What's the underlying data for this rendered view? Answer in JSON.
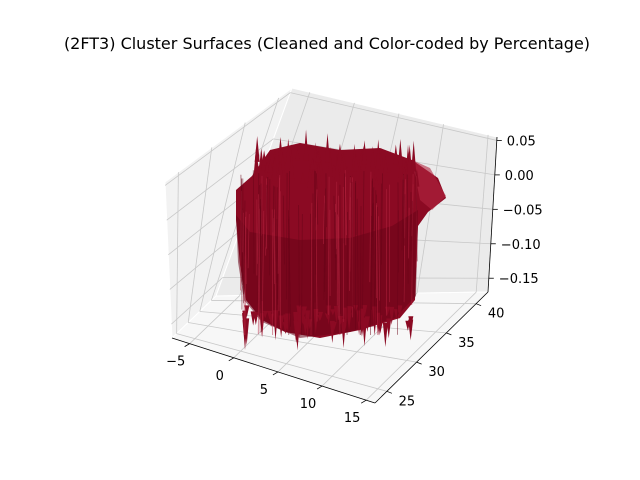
{
  "chart_data": {
    "type": "surface3d",
    "title": "(2FT3) Cluster Surfaces (Cleaned and Color-coded by Percentage)",
    "xlabel": "",
    "ylabel": "",
    "zlabel": "",
    "x_ticks": [
      "−5",
      "0",
      "5",
      "10",
      "15"
    ],
    "x_tick_values": [
      -5,
      0,
      5,
      10,
      15
    ],
    "y_ticks": [
      "25",
      "30",
      "35",
      "40"
    ],
    "y_tick_values": [
      25,
      30,
      35,
      40
    ],
    "z_ticks": [
      "0.05",
      "0.00",
      "−0.05",
      "−0.10",
      "−0.15"
    ],
    "z_tick_values": [
      0.05,
      0.0,
      -0.05,
      -0.1,
      -0.15
    ],
    "xlim": [
      -7,
      16
    ],
    "ylim": [
      23,
      42
    ],
    "zlim": [
      -0.17,
      0.055
    ],
    "grid": true,
    "colors": {
      "surface": "#8b0a23",
      "surface_dark": "#6a0418",
      "surface_light": "#b2243f",
      "pane_left": "#f2f2f2",
      "pane_right": "#ebebeb",
      "pane_floor": "#f7f7f7"
    }
  }
}
